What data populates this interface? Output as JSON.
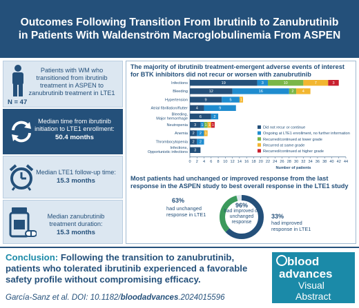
{
  "title": "Outcomes Following Transition From Ibrutinib to Zanubrutinib in Patients With Waldenström Macroglobulinemia From ASPEN",
  "left_panel": {
    "patients_text": "Patients with WM who transitioned from ibrutinib treatment in ASPEN to zanubrutinib treatment in LTE1",
    "n_label": "N = 47",
    "median_time_label": "Median time from ibrutinib initiation to LTE1 enrollment:",
    "median_time_value": "50.4 months",
    "followup_label": "Median LTE1 follow-up time:",
    "followup_value": "15.3 months",
    "duration_label": "Median zanubrutinib treatment duration:",
    "duration_value": "15.3 months"
  },
  "ae_section": {
    "title": "The majority of ibrutinib treatment-emergent adverse events of interest for BTK inhibitors did not recur or worsen with zanubrutinib"
  },
  "response_section": {
    "title": "Most patients had unchanged or improved response from the last response in the ASPEN study to best overall response in the LTE1 study",
    "unchanged_pct": "63%",
    "unchanged_text": "had unchanged response in LTE1",
    "center_pct": "96%",
    "center_text": "had improved or unchanged response",
    "improved_pct": "33%",
    "improved_text": "had improved response in LTE1",
    "unchanged_fraction": 0.63,
    "improved_fraction": 0.33
  },
  "chart_data": {
    "type": "bar",
    "orientation": "horizontal",
    "stacked": true,
    "categories": [
      "Infections",
      "Bleeding",
      "Hypertension",
      "Atrial fibrillation/flutter",
      "Bleeding, Major hemorrhage",
      "Neutropenia",
      "Anemia",
      "Thrombocytopenia",
      "Infections, Opportunistic infections"
    ],
    "series": [
      {
        "name": "Did not recur or continue",
        "color": "#24507a",
        "values": [
          19,
          12,
          9,
          4,
          6,
          3,
          2,
          2,
          3
        ]
      },
      {
        "name": "Ongoing at LTE1 enrollment, no further information",
        "color": "#1f8ccf",
        "values": [
          3,
          16,
          5,
          9,
          2,
          1,
          2,
          2,
          0
        ]
      },
      {
        "name": "Recurred/continued at lower grade",
        "color": "#7ab648",
        "values": [
          10,
          2,
          0,
          0,
          0,
          1,
          0,
          0,
          0
        ]
      },
      {
        "name": "Recurred at same grade",
        "color": "#f2b630",
        "values": [
          7,
          4,
          1,
          0,
          0,
          1,
          1,
          0,
          0
        ]
      },
      {
        "name": "Recurred/continued at higher grade",
        "color": "#c8202e",
        "values": [
          3,
          0,
          0,
          0,
          0,
          1,
          0,
          0,
          0
        ]
      }
    ],
    "xlabel": "Number of patients",
    "xlim": [
      0,
      44
    ],
    "xticks": [
      0,
      2,
      4,
      6,
      8,
      10,
      12,
      14,
      16,
      18,
      20,
      22,
      24,
      26,
      28,
      30,
      32,
      34,
      36,
      38,
      40,
      42,
      44
    ],
    "legend_position": "right"
  },
  "conclusion": {
    "head": "Conclusion:",
    "text": "Following the transition to zanubrutinib, patients who tolerated ibrutinib experienced a favorable safety profile without compromising efficacy.",
    "citation_prefix": "García-Sanz et al. DOI: 10.1182/",
    "citation_bold": "bloodadvances",
    "citation_suffix": ".2024015596"
  },
  "logo": {
    "line1": "blood",
    "line2": "advances",
    "line3": "Visual",
    "line4": "Abstract"
  }
}
